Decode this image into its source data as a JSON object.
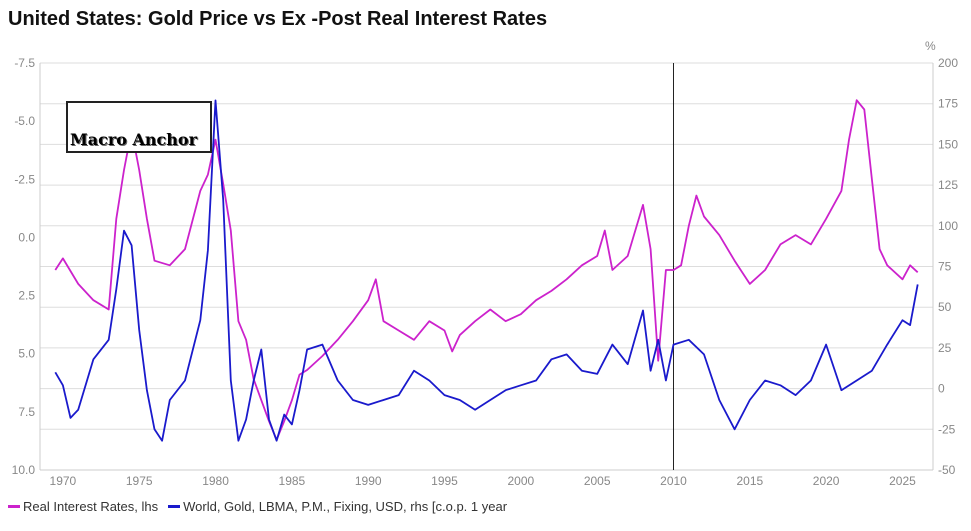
{
  "title": "United States: Gold Price vs Ex -Post Real Interest Rates",
  "logo_text": "Macro Anchor",
  "chart_data": {
    "type": "line",
    "title": "United States: Gold Price vs Ex -Post Real Interest Rates",
    "right_unit": "%",
    "xlim": [
      1968.5,
      2027
    ],
    "x_ticks": [
      1970,
      1975,
      1980,
      1985,
      1990,
      1995,
      2000,
      2005,
      2010,
      2015,
      2020,
      2025
    ],
    "y_left": {
      "range": [
        -7.5,
        10.0
      ],
      "inverted": true,
      "ticks": [
        "-7.5",
        "-5.0",
        "-2.5",
        "0.0",
        "2.5",
        "5.0",
        "7.5",
        "10.0"
      ]
    },
    "y_right": {
      "range": [
        -50,
        200
      ],
      "ticks": [
        "200",
        "175",
        "150",
        "125",
        "100",
        "75",
        "50",
        "25",
        "0",
        "-25",
        "-50"
      ]
    },
    "grid": true,
    "vertical_marker_x": 2010,
    "legend_position": "bottom",
    "series": [
      {
        "name": "Real Interest Rates, lhs",
        "axis": "left",
        "color": "#cc22cc",
        "x": [
          1969.5,
          1970,
          1971,
          1972,
          1973,
          1973.5,
          1974,
          1974.5,
          1975,
          1975.5,
          1976,
          1977,
          1978,
          1979,
          1979.5,
          1980,
          1980.5,
          1981,
          1981.5,
          1982,
          1982.5,
          1983,
          1983.5,
          1984,
          1984.5,
          1985,
          1985.5,
          1986,
          1987,
          1988,
          1989,
          1990,
          1990.5,
          1991,
          1992,
          1993,
          1994,
          1995,
          1995.5,
          1996,
          1997,
          1998,
          1999,
          2000,
          2001,
          2002,
          2003,
          2004,
          2005,
          2005.5,
          2006,
          2007,
          2007.5,
          2008,
          2008.5,
          2009,
          2009.5,
          2010,
          2010.5,
          2011,
          2011.5,
          2012,
          2013,
          2014,
          2015,
          2016,
          2017,
          2018,
          2019,
          2020,
          2021,
          2021.5,
          2022,
          2022.5,
          2023,
          2023.5,
          2024,
          2025,
          2025.5,
          2026
        ],
        "y": [
          1.4,
          0.9,
          2.0,
          2.7,
          3.1,
          -0.8,
          -2.9,
          -4.6,
          -2.9,
          -0.8,
          1.0,
          1.2,
          0.5,
          -2.0,
          -2.7,
          -4.2,
          -2.3,
          -0.3,
          3.6,
          4.4,
          6.1,
          7.0,
          7.9,
          8.7,
          7.9,
          7.0,
          5.9,
          5.7,
          5.1,
          4.4,
          3.6,
          2.7,
          1.8,
          3.6,
          4.0,
          4.4,
          3.6,
          4.0,
          4.9,
          4.2,
          3.6,
          3.1,
          3.6,
          3.3,
          2.7,
          2.3,
          1.8,
          1.2,
          0.8,
          -0.3,
          1.4,
          0.8,
          -0.3,
          -1.4,
          0.5,
          5.3,
          1.4,
          1.4,
          1.2,
          -0.5,
          -1.8,
          -0.9,
          -0.1,
          1.0,
          2.0,
          1.4,
          0.3,
          -0.1,
          0.3,
          -0.8,
          -2.0,
          -4.2,
          -5.9,
          -5.5,
          -2.5,
          0.5,
          1.2,
          1.8,
          1.2,
          1.5
        ]
      },
      {
        "name": "World, Gold, LBMA, P.M., Fixing, USD, rhs [c.o.p. 1 year",
        "axis": "right",
        "color": "#1a1acc",
        "x": [
          1969.5,
          1970,
          1970.5,
          1971,
          1972,
          1973,
          1973.5,
          1974,
          1974.5,
          1975,
          1975.5,
          1976,
          1976.5,
          1977,
          1978,
          1979,
          1979.5,
          1980,
          1980.5,
          1981,
          1981.5,
          1982,
          1982.5,
          1983,
          1983.5,
          1984,
          1984.5,
          1985,
          1985.5,
          1986,
          1987,
          1988,
          1989,
          1990,
          1991,
          1992,
          1993,
          1994,
          1995,
          1996,
          1997,
          1998,
          1999,
          2000,
          2001,
          2002,
          2003,
          2004,
          2005,
          2006,
          2007,
          2008,
          2008.5,
          2009,
          2009.5,
          2010,
          2011,
          2012,
          2013,
          2014,
          2015,
          2016,
          2017,
          2018,
          2019,
          2020,
          2021,
          2022,
          2023,
          2024,
          2025,
          2025.5,
          2026
        ],
        "y": [
          10,
          2,
          -18,
          -13,
          18,
          30,
          61,
          97,
          88,
          36,
          -1,
          -25,
          -32,
          -7,
          5,
          42,
          85,
          177,
          116,
          5,
          -32,
          -19,
          5,
          24,
          -19,
          -32,
          -16,
          -22,
          -1,
          24,
          27,
          5,
          -7,
          -10,
          -7,
          -4,
          11,
          5,
          -4,
          -7,
          -13,
          -7,
          -1,
          2,
          5,
          18,
          21,
          11,
          9,
          27,
          15,
          48,
          11,
          30,
          5,
          27,
          30,
          21,
          -7,
          -25,
          -7,
          5,
          2,
          -4,
          5,
          27,
          -1,
          5,
          11,
          27,
          42,
          39,
          64
        ]
      }
    ]
  }
}
